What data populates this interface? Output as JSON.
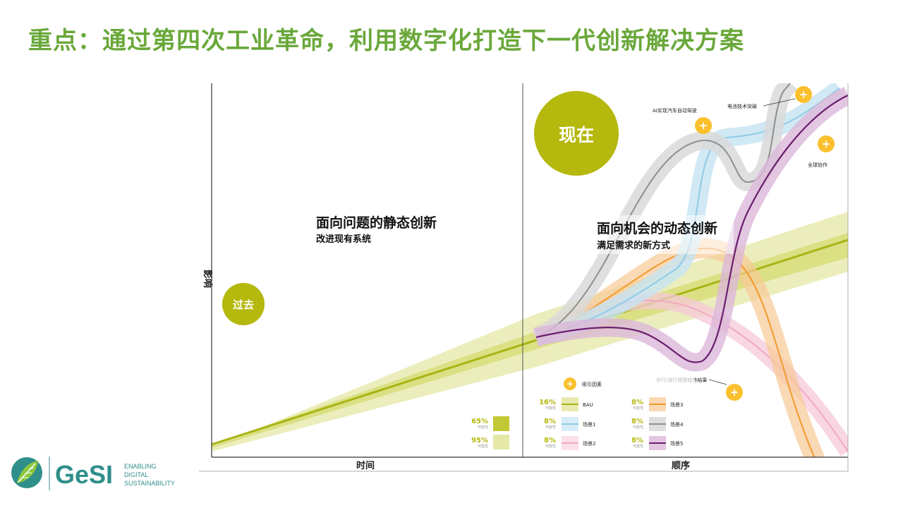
{
  "slide": {
    "title": "重点：通过第四次工业革命，利用数字化打造下一代创新解决方案"
  },
  "colors": {
    "title": "#6aa83a",
    "olive": "#b5b80d",
    "band_light": "#e4e8a8",
    "band_mid": "#d3da6a",
    "bau": "#a9b414",
    "scenario1": "#8fcbe6",
    "scenario2": "#f2a9c4",
    "scenario3": "#f29a2e",
    "scenario4": "#8f8f8f",
    "scenario5": "#6b1f6e",
    "marker": "#fbc02d"
  },
  "diagram": {
    "y_axis_label": "影响",
    "x_axis_left_label": "时间",
    "x_axis_right_label": "顺序",
    "past_label": "过去",
    "now_label": "现在",
    "left_heading": "面向问题的静态创新",
    "left_subheading": "改进现有系统",
    "right_heading": "面向机会的动态创新",
    "right_subheading": "满足需求的新方式",
    "annotations": {
      "ai": "AI实现汽车自动驾驶",
      "battery": "电池技术突破",
      "global": "全球协作",
      "walking": "步行/骑行健康趋势结果"
    }
  },
  "legend": {
    "marker_label": "吸引因素",
    "left_bands": [
      {
        "pct": "65%",
        "sub": "可能性",
        "color": "#c3c936"
      },
      {
        "pct": "95%",
        "sub": "可能性",
        "color": "#e5e8a6"
      }
    ],
    "items": [
      {
        "pct": "16%",
        "sub": "可能性",
        "name": "BAU",
        "color": "#a9b414"
      },
      {
        "pct": "8%",
        "sub": "可能性",
        "name": "场景1",
        "color": "#8fcbe6"
      },
      {
        "pct": "8%",
        "sub": "可能性",
        "name": "场景2",
        "color": "#f2a9c4"
      },
      {
        "pct": "8%",
        "sub": "可能性",
        "name": "场景3",
        "color": "#f29a2e"
      },
      {
        "pct": "8%",
        "sub": "可能性",
        "name": "场景4",
        "color": "#8f8f8f"
      },
      {
        "pct": "8%",
        "sub": "可能性",
        "name": "场景5",
        "color": "#6b1f6e"
      }
    ]
  },
  "logo": {
    "brand": "GeSI",
    "tagline_1": "ENABLING",
    "tagline_2": "DIGITAL",
    "tagline_3": "SUSTAINABILITY"
  }
}
